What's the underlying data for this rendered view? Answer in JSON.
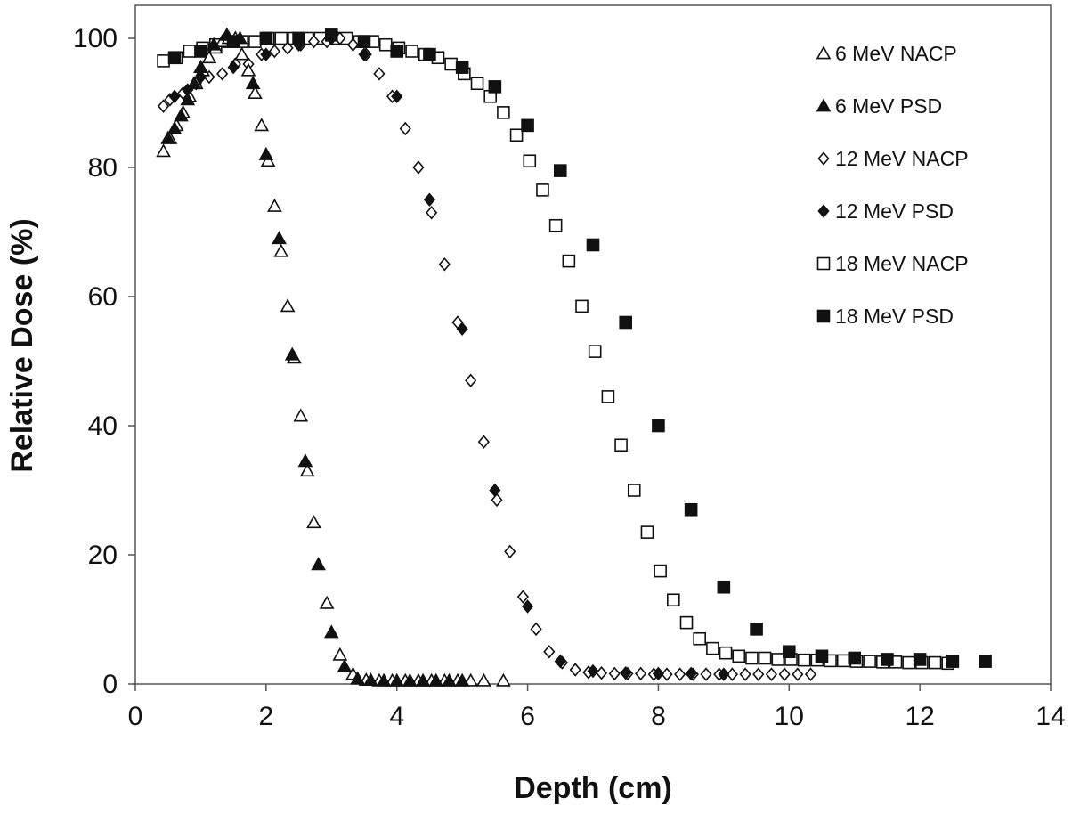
{
  "chart_data": {
    "type": "scatter",
    "title": "",
    "xlabel": "Depth (cm)",
    "ylabel": "Relative Dose (%)",
    "xlim": [
      0,
      14
    ],
    "ylim": [
      0,
      100
    ],
    "xticks": [
      0,
      2,
      4,
      6,
      8,
      10,
      12,
      14
    ],
    "yticks": [
      0,
      20,
      40,
      60,
      80,
      100
    ],
    "grid": false,
    "legend_position": "top-right",
    "series": [
      {
        "name": "6 MeV NACP",
        "marker": "triangle-open",
        "points": [
          [
            0.43,
            82.5
          ],
          [
            0.53,
            84.5
          ],
          [
            0.63,
            86.5
          ],
          [
            0.73,
            88.5
          ],
          [
            0.83,
            91.0
          ],
          [
            0.93,
            93.0
          ],
          [
            1.03,
            95.0
          ],
          [
            1.13,
            97.0
          ],
          [
            1.23,
            98.5
          ],
          [
            1.33,
            99.5
          ],
          [
            1.43,
            100.0
          ],
          [
            1.53,
            100.0
          ],
          [
            1.63,
            97.5
          ],
          [
            1.73,
            95.0
          ],
          [
            1.83,
            91.5
          ],
          [
            1.93,
            86.5
          ],
          [
            2.03,
            81.0
          ],
          [
            2.13,
            74.0
          ],
          [
            2.23,
            67.0
          ],
          [
            2.33,
            58.5
          ],
          [
            2.43,
            50.5
          ],
          [
            2.53,
            41.5
          ],
          [
            2.63,
            33.0
          ],
          [
            2.73,
            25.0
          ],
          [
            2.93,
            12.5
          ],
          [
            3.13,
            4.5
          ],
          [
            3.33,
            1.5
          ],
          [
            3.53,
            0.6
          ],
          [
            3.73,
            0.5
          ],
          [
            3.93,
            0.5
          ],
          [
            4.13,
            0.5
          ],
          [
            4.33,
            0.5
          ],
          [
            4.53,
            0.5
          ],
          [
            4.73,
            0.5
          ],
          [
            4.93,
            0.5
          ],
          [
            5.13,
            0.5
          ],
          [
            5.33,
            0.5
          ],
          [
            5.63,
            0.5
          ]
        ]
      },
      {
        "name": "6 MeV PSD",
        "marker": "triangle-filled",
        "points": [
          [
            0.5,
            84.5
          ],
          [
            0.6,
            86.0
          ],
          [
            0.7,
            88.0
          ],
          [
            0.8,
            90.5
          ],
          [
            0.9,
            93.0
          ],
          [
            1.0,
            95.5
          ],
          [
            1.2,
            99.0
          ],
          [
            1.4,
            100.5
          ],
          [
            1.6,
            100.0
          ],
          [
            1.8,
            93.0
          ],
          [
            2.0,
            82.0
          ],
          [
            2.2,
            69.0
          ],
          [
            2.4,
            51.0
          ],
          [
            2.6,
            34.5
          ],
          [
            2.8,
            18.5
          ],
          [
            3.0,
            8.0
          ],
          [
            3.2,
            2.7
          ],
          [
            3.4,
            0.8
          ],
          [
            3.6,
            0.6
          ],
          [
            3.8,
            0.5
          ],
          [
            4.0,
            0.5
          ],
          [
            4.2,
            0.5
          ],
          [
            4.4,
            0.5
          ],
          [
            4.6,
            0.5
          ],
          [
            4.8,
            0.5
          ],
          [
            5.0,
            0.5
          ]
        ]
      },
      {
        "name": "12 MeV NACP",
        "marker": "diamond-open",
        "points": [
          [
            0.43,
            89.5
          ],
          [
            0.53,
            90.5
          ],
          [
            0.73,
            91.5
          ],
          [
            0.93,
            93.0
          ],
          [
            1.13,
            94.0
          ],
          [
            1.33,
            94.5
          ],
          [
            1.53,
            96.0
          ],
          [
            1.73,
            96.0
          ],
          [
            1.93,
            97.5
          ],
          [
            2.13,
            98.0
          ],
          [
            2.33,
            98.5
          ],
          [
            2.53,
            99.0
          ],
          [
            2.73,
            99.5
          ],
          [
            2.93,
            99.5
          ],
          [
            3.13,
            100.0
          ],
          [
            3.33,
            99.0
          ],
          [
            3.53,
            97.5
          ],
          [
            3.73,
            94.5
          ],
          [
            3.93,
            91.0
          ],
          [
            4.13,
            86.0
          ],
          [
            4.33,
            80.0
          ],
          [
            4.53,
            73.0
          ],
          [
            4.73,
            65.0
          ],
          [
            4.93,
            56.0
          ],
          [
            5.13,
            47.0
          ],
          [
            5.33,
            37.5
          ],
          [
            5.53,
            28.5
          ],
          [
            5.73,
            20.5
          ],
          [
            5.93,
            13.5
          ],
          [
            6.13,
            8.5
          ],
          [
            6.33,
            5.0
          ],
          [
            6.53,
            3.3
          ],
          [
            6.73,
            2.2
          ],
          [
            6.93,
            1.8
          ],
          [
            7.13,
            1.7
          ],
          [
            7.33,
            1.6
          ],
          [
            7.53,
            1.6
          ],
          [
            7.73,
            1.6
          ],
          [
            7.93,
            1.5
          ],
          [
            8.13,
            1.5
          ],
          [
            8.33,
            1.5
          ],
          [
            8.53,
            1.5
          ],
          [
            8.73,
            1.5
          ],
          [
            8.93,
            1.5
          ],
          [
            9.13,
            1.5
          ],
          [
            9.33,
            1.5
          ],
          [
            9.53,
            1.5
          ],
          [
            9.73,
            1.5
          ],
          [
            9.93,
            1.5
          ],
          [
            10.13,
            1.5
          ],
          [
            10.33,
            1.5
          ]
        ]
      },
      {
        "name": "12 MeV PSD",
        "marker": "diamond-filled",
        "points": [
          [
            0.6,
            91.0
          ],
          [
            0.8,
            92.0
          ],
          [
            1.0,
            94.0
          ],
          [
            1.5,
            95.5
          ],
          [
            2.0,
            97.5
          ],
          [
            2.5,
            99.0
          ],
          [
            3.0,
            100.0
          ],
          [
            3.5,
            97.5
          ],
          [
            4.0,
            91.0
          ],
          [
            4.5,
            75.0
          ],
          [
            5.0,
            55.0
          ],
          [
            5.5,
            30.0
          ],
          [
            6.0,
            12.0
          ],
          [
            6.5,
            3.5
          ],
          [
            7.0,
            2.0
          ],
          [
            7.5,
            1.7
          ],
          [
            8.0,
            1.6
          ],
          [
            8.5,
            1.6
          ],
          [
            9.0,
            1.5
          ]
        ]
      },
      {
        "name": "18 MeV NACP",
        "marker": "square-open",
        "points": [
          [
            0.43,
            96.5
          ],
          [
            0.63,
            97.0
          ],
          [
            0.83,
            98.0
          ],
          [
            1.03,
            98.5
          ],
          [
            1.23,
            99.0
          ],
          [
            1.43,
            99.5
          ],
          [
            1.63,
            99.5
          ],
          [
            1.83,
            99.5
          ],
          [
            2.03,
            100.0
          ],
          [
            2.23,
            100.0
          ],
          [
            2.43,
            100.0
          ],
          [
            2.63,
            100.0
          ],
          [
            2.83,
            100.0
          ],
          [
            3.03,
            100.0
          ],
          [
            3.23,
            100.0
          ],
          [
            3.43,
            99.5
          ],
          [
            3.63,
            99.5
          ],
          [
            3.83,
            99.0
          ],
          [
            4.03,
            98.5
          ],
          [
            4.23,
            98.0
          ],
          [
            4.43,
            97.5
          ],
          [
            4.63,
            97.0
          ],
          [
            4.83,
            96.0
          ],
          [
            5.03,
            94.5
          ],
          [
            5.23,
            93.0
          ],
          [
            5.43,
            91.0
          ],
          [
            5.63,
            88.5
          ],
          [
            5.83,
            85.0
          ],
          [
            6.03,
            81.0
          ],
          [
            6.23,
            76.5
          ],
          [
            6.43,
            71.0
          ],
          [
            6.63,
            65.5
          ],
          [
            6.83,
            58.5
          ],
          [
            7.03,
            51.5
          ],
          [
            7.23,
            44.5
          ],
          [
            7.43,
            37.0
          ],
          [
            7.63,
            30.0
          ],
          [
            7.83,
            23.5
          ],
          [
            8.03,
            17.5
          ],
          [
            8.23,
            13.0
          ],
          [
            8.43,
            9.5
          ],
          [
            8.63,
            7.0
          ],
          [
            8.83,
            5.5
          ],
          [
            9.03,
            4.8
          ],
          [
            9.23,
            4.3
          ],
          [
            9.43,
            4.0
          ],
          [
            9.63,
            4.0
          ],
          [
            9.83,
            3.8
          ],
          [
            10.03,
            3.8
          ],
          [
            10.23,
            3.7
          ],
          [
            10.43,
            3.7
          ],
          [
            10.63,
            3.6
          ],
          [
            10.83,
            3.6
          ],
          [
            11.03,
            3.5
          ],
          [
            11.23,
            3.5
          ],
          [
            11.43,
            3.4
          ],
          [
            11.63,
            3.4
          ],
          [
            11.83,
            3.3
          ],
          [
            12.03,
            3.3
          ],
          [
            12.23,
            3.3
          ],
          [
            12.43,
            3.2
          ]
        ]
      },
      {
        "name": "18 MeV PSD",
        "marker": "square-filled",
        "points": [
          [
            0.6,
            97.0
          ],
          [
            1.0,
            98.0
          ],
          [
            1.5,
            99.5
          ],
          [
            2.0,
            100.0
          ],
          [
            2.5,
            100.0
          ],
          [
            3.0,
            100.5
          ],
          [
            3.5,
            99.5
          ],
          [
            4.0,
            98.0
          ],
          [
            4.5,
            97.5
          ],
          [
            5.0,
            95.5
          ],
          [
            5.5,
            92.5
          ],
          [
            6.0,
            86.5
          ],
          [
            6.5,
            79.5
          ],
          [
            7.0,
            68.0
          ],
          [
            7.5,
            56.0
          ],
          [
            8.0,
            40.0
          ],
          [
            8.5,
            27.0
          ],
          [
            9.0,
            15.0
          ],
          [
            9.5,
            8.5
          ],
          [
            10.0,
            5.0
          ],
          [
            10.5,
            4.3
          ],
          [
            11.0,
            4.0
          ],
          [
            11.5,
            3.8
          ],
          [
            12.0,
            3.8
          ],
          [
            12.5,
            3.5
          ],
          [
            13.0,
            3.5
          ]
        ]
      }
    ]
  }
}
